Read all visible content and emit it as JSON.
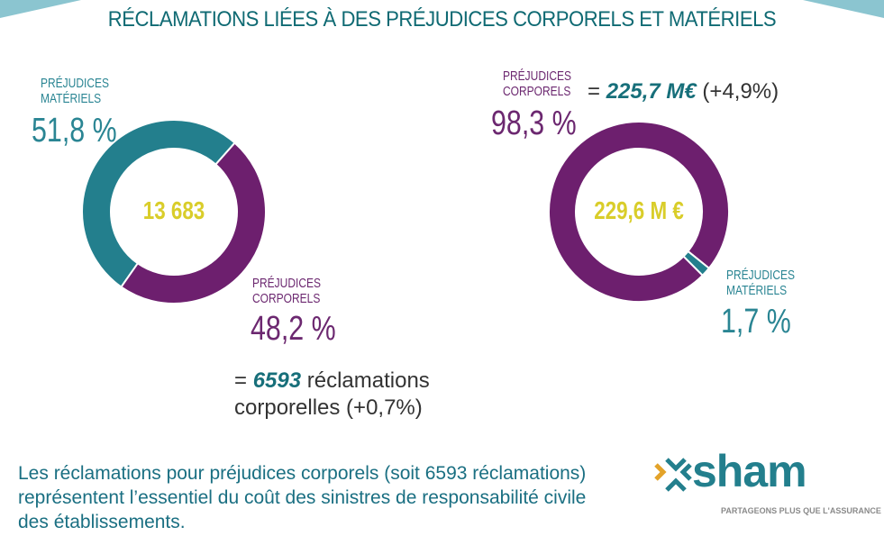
{
  "title": "RÉCLAMATIONS LIÉES À DES PRÉJUDICES CORPORELS ET MATÉRIELS",
  "colors": {
    "teal": "#237f8d",
    "purple": "#6d1f6e",
    "center": "#d9cd2a"
  },
  "chart_data": [
    {
      "type": "pie",
      "donut": true,
      "center_label": "13 683",
      "categories": [
        "PRÉJUDICES MATÉRIELS",
        "PRÉJUDICES CORPORELS"
      ],
      "values": [
        51.8,
        48.2
      ],
      "labels": [
        "51,8 %",
        "48,2 %"
      ]
    },
    {
      "type": "pie",
      "donut": true,
      "center_label": "229,6 M €",
      "categories": [
        "PRÉJUDICES CORPORELS",
        "PRÉJUDICES MATÉRIELS"
      ],
      "values": [
        98.3,
        1.7
      ],
      "labels": [
        "98,3 %",
        "1,7 %"
      ]
    }
  ],
  "left_note": {
    "eq": "= ",
    "bold": "6593",
    "rest1": " réclamations",
    "rest2": "corporelles (+0,7%)"
  },
  "right_note": {
    "eq": "= ",
    "bold": "225,7 M€",
    "rest": " (+4,9%)"
  },
  "footer": [
    "Les réclamations pour préjudices corporels (soit 6593 réclamations)",
    "représentent l’essentiel du coût des sinistres de responsabilité civile",
    "des établissements."
  ],
  "logo": {
    "name": "sham",
    "tagline": "PARTAGEONS PLUS QUE L'ASSURANCE"
  }
}
